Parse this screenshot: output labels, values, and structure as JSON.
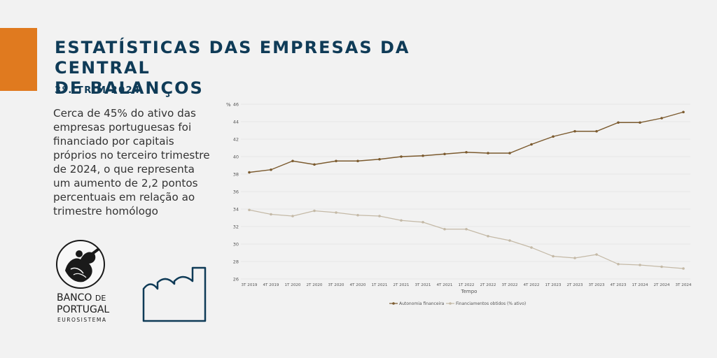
{
  "header": {
    "title_line1": "ESTATÍSTICAS DAS EMPRESAS DA CENTRAL",
    "title_line2": "DE BALANÇOS",
    "subtitle": "3º. TRIM 2024"
  },
  "summary": "Cerca de 45% do ativo das empresas portuguesas foi financiado por capitais próprios no terceiro trimestre de 2024, o que representa um aumento de 2,2 pontos percentuais em relação ao trimestre homólogo",
  "logo": {
    "name_line1": "BANCO",
    "name_de": "DE",
    "name_line2": "PORTUGAL",
    "sub": "EUROSISTEMA"
  },
  "colors": {
    "accent": "#e07a1f",
    "title": "#0f3b57",
    "series1": "#7b5a2e",
    "series2": "#c4b9a6"
  },
  "chart_data": {
    "type": "line",
    "ylabel": "%",
    "xlabel": "Tempo",
    "ylim": [
      26,
      46
    ],
    "yticks": [
      26,
      28,
      30,
      32,
      34,
      36,
      38,
      40,
      42,
      44,
      46
    ],
    "grid": true,
    "legend_position": "bottom",
    "categories": [
      "3T 2019",
      "4T 2019",
      "1T 2020",
      "2T 2020",
      "3T 2020",
      "4T 2020",
      "1T 2021",
      "2T 2021",
      "3T 2021",
      "4T 2021",
      "1T 2022",
      "2T 2022",
      "3T 2022",
      "4T 2022",
      "1T 2023",
      "2T 2023",
      "3T 2023",
      "4T 2023",
      "1T 2024",
      "2T 2024",
      "3T 2024"
    ],
    "series": [
      {
        "name": "Autonomia financeira",
        "color": "#7b5a2e",
        "values": [
          38.2,
          38.5,
          39.5,
          39.1,
          39.5,
          39.5,
          39.7,
          40.0,
          40.1,
          40.3,
          40.5,
          40.4,
          40.4,
          41.4,
          42.3,
          42.9,
          42.9,
          43.9,
          43.9,
          44.4,
          45.1
        ]
      },
      {
        "name": "Financiamentos obtidos (% ativo)",
        "color": "#c4b9a6",
        "values": [
          33.9,
          33.4,
          33.2,
          33.8,
          33.6,
          33.3,
          33.2,
          32.7,
          32.5,
          31.7,
          31.7,
          30.9,
          30.4,
          29.6,
          28.6,
          28.4,
          28.8,
          27.7,
          27.6,
          27.4,
          27.2
        ]
      }
    ]
  }
}
